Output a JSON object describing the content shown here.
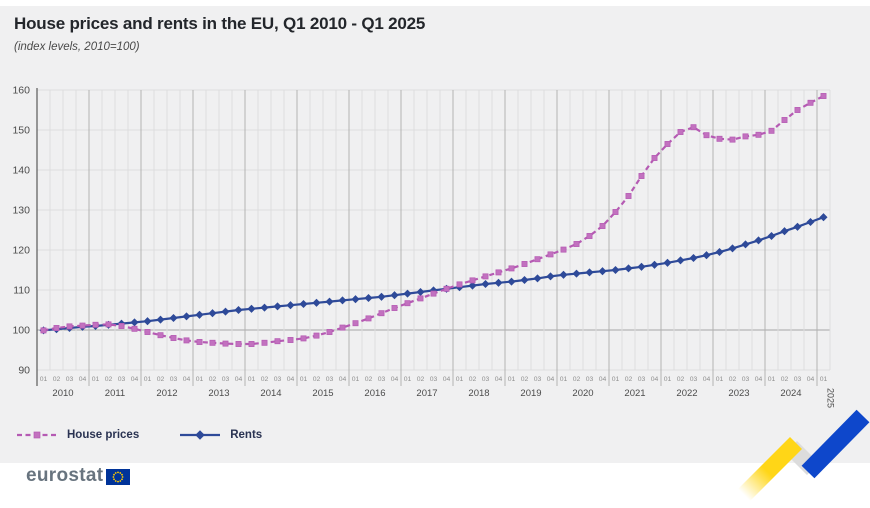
{
  "panel": {
    "title": "House prices and rents in the EU, Q1 2010 - Q1 2025",
    "subtitle": "(index levels, 2010=100)"
  },
  "legend": {
    "items": [
      {
        "label": "House prices"
      },
      {
        "label": "Rents"
      }
    ]
  },
  "footer": {
    "logo_text": "eurostat"
  },
  "colors": {
    "panel_bg": "#f0f0f1",
    "grid_light": "#dedede",
    "grid_baseline": "#a6a6a6",
    "year_line": "#b3b3b3",
    "axis": "#5a5a5a",
    "tick_text": "#4c4c4c",
    "quarter_text": "#8f8f8f",
    "house_prices": "#b55ab3",
    "house_marker_fill": "#c271bf",
    "rents": "#2e4a99",
    "rents_marker_fill": "#2e4a99",
    "ribbon_yellow": "#ffd617",
    "ribbon_silver": "#dcdcdc",
    "ribbon_blue": "#0e47cb",
    "eu_flag_blue": "#003399",
    "eu_star_yellow": "#ffcc00"
  },
  "chart_data": {
    "type": "line",
    "title": "House prices and rents in the EU, Q1 2010 - Q1 2025",
    "subtitle": "(index levels, 2010=100)",
    "ylabel": "index level (2010=100)",
    "y_ticks": [
      90,
      100,
      110,
      120,
      130,
      140,
      150,
      160
    ],
    "ylim": [
      90,
      160
    ],
    "baseline_value": 100,
    "grid": true,
    "legend_position": "bottom-left",
    "years": [
      "2010",
      "2011",
      "2012",
      "2013",
      "2014",
      "2015",
      "2016",
      "2017",
      "2018",
      "2019",
      "2020",
      "2021",
      "2022",
      "2023",
      "2024",
      "2025"
    ],
    "quarter_labels": [
      "01",
      "02",
      "03",
      "04"
    ],
    "quarters_in_final_year": 1,
    "series": [
      {
        "name": "House prices",
        "style": "dashed",
        "marker": "square",
        "values": [
          99.9,
          100.5,
          100.9,
          101.1,
          101.3,
          101.4,
          101.0,
          100.3,
          99.5,
          98.7,
          98.0,
          97.4,
          97.0,
          96.8,
          96.6,
          96.5,
          96.5,
          96.8,
          97.2,
          97.5,
          97.9,
          98.6,
          99.5,
          100.6,
          101.7,
          102.9,
          104.2,
          105.5,
          106.7,
          107.9,
          109.1,
          110.3,
          111.4,
          112.4,
          113.4,
          114.4,
          115.4,
          116.5,
          117.7,
          118.9,
          120.1,
          121.5,
          123.5,
          126.0,
          129.5,
          133.5,
          138.5,
          143.0,
          146.5,
          149.5,
          150.7,
          148.7,
          147.8,
          147.6,
          148.4,
          148.8,
          149.8,
          152.5,
          155.0,
          156.8,
          158.5
        ]
      },
      {
        "name": "Rents",
        "style": "solid",
        "marker": "diamond",
        "values": [
          99.9,
          100.2,
          100.5,
          100.8,
          101.0,
          101.3,
          101.6,
          101.9,
          102.2,
          102.6,
          103.0,
          103.4,
          103.8,
          104.2,
          104.6,
          105.0,
          105.3,
          105.6,
          105.9,
          106.2,
          106.5,
          106.8,
          107.1,
          107.4,
          107.7,
          108.0,
          108.3,
          108.7,
          109.1,
          109.5,
          109.9,
          110.3,
          110.7,
          111.1,
          111.5,
          111.8,
          112.1,
          112.5,
          112.9,
          113.4,
          113.8,
          114.1,
          114.4,
          114.7,
          115.0,
          115.4,
          115.8,
          116.3,
          116.8,
          117.4,
          118.0,
          118.7,
          119.5,
          120.4,
          121.4,
          122.4,
          123.5,
          124.7,
          125.8,
          127.0,
          128.2
        ]
      }
    ]
  }
}
